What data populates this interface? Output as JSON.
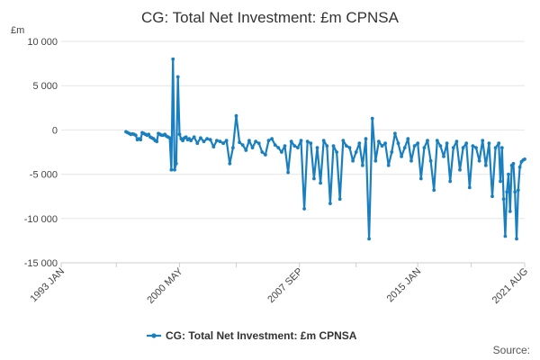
{
  "chart_data": {
    "type": "line",
    "title": "CG: Total Net Investment: £m CPNSA",
    "ylabel": "£m",
    "xlabel": "",
    "ylim": [
      -15000,
      10000
    ],
    "yticks": [
      10000,
      5000,
      0,
      -5000,
      -10000,
      -15000
    ],
    "ytick_labels": [
      "10 000",
      "5 000",
      "0",
      "-5 000",
      "-10 000",
      "-15 000"
    ],
    "xlim": [
      1993.0,
      2021.6
    ],
    "xticks": [
      1993.0,
      1996.4,
      2000.3,
      2003.8,
      2007.7,
      2011.2,
      2015.0,
      2018.3,
      2021.6
    ],
    "xtick_labels": [
      {
        "pos": 1993.0,
        "label": "1993 JAN"
      },
      {
        "pos": 2000.3,
        "label": "2000 MAY"
      },
      {
        "pos": 2007.7,
        "label": "2007 SEP"
      },
      {
        "pos": 2015.0,
        "label": "2015 JAN"
      },
      {
        "pos": 2021.6,
        "label": "2021 AUG"
      }
    ],
    "color": "#1a7fbf",
    "legend": {
      "label": "CG: Total Net Investment: £m CPNSA",
      "position": "bottom"
    },
    "series": [
      {
        "name": "CG: Total Net Investment: £m CPNSA",
        "x": [
          1997.0,
          1997.1,
          1997.2,
          1997.3,
          1997.4,
          1997.5,
          1997.6,
          1997.7,
          1997.8,
          1997.9,
          1998.0,
          1998.1,
          1998.2,
          1998.3,
          1998.4,
          1998.5,
          1998.6,
          1998.7,
          1998.8,
          1998.9,
          1999.0,
          1999.1,
          1999.2,
          1999.3,
          1999.4,
          1999.5,
          1999.6,
          1999.7,
          1999.8,
          1999.9,
          2000.0,
          2000.1,
          2000.2,
          2000.3,
          2000.4,
          2000.5,
          2000.6,
          2000.7,
          2000.8,
          2000.9,
          2001.0,
          2001.2,
          2001.4,
          2001.6,
          2001.8,
          2002.0,
          2002.2,
          2002.4,
          2002.6,
          2002.8,
          2003.0,
          2003.2,
          2003.4,
          2003.6,
          2003.8,
          2004.0,
          2004.2,
          2004.4,
          2004.6,
          2004.8,
          2005.0,
          2005.2,
          2005.4,
          2005.6,
          2005.8,
          2006.0,
          2006.2,
          2006.4,
          2006.6,
          2006.8,
          2007.0,
          2007.2,
          2007.4,
          2007.6,
          2007.8,
          2008.0,
          2008.2,
          2008.4,
          2008.6,
          2008.8,
          2009.0,
          2009.2,
          2009.4,
          2009.6,
          2009.8,
          2010.0,
          2010.2,
          2010.4,
          2010.6,
          2010.8,
          2011.0,
          2011.2,
          2011.4,
          2011.6,
          2011.8,
          2012.0,
          2012.2,
          2012.4,
          2012.6,
          2012.8,
          2013.0,
          2013.2,
          2013.4,
          2013.6,
          2013.8,
          2014.0,
          2014.2,
          2014.4,
          2014.6,
          2014.8,
          2015.0,
          2015.2,
          2015.4,
          2015.6,
          2015.8,
          2016.0,
          2016.2,
          2016.4,
          2016.6,
          2016.8,
          2017.0,
          2017.2,
          2017.4,
          2017.6,
          2017.8,
          2018.0,
          2018.2,
          2018.4,
          2018.6,
          2018.8,
          2019.0,
          2019.2,
          2019.4,
          2019.6,
          2019.8,
          2020.0,
          2020.1,
          2020.2,
          2020.3,
          2020.4,
          2020.5,
          2020.6,
          2020.7,
          2020.8,
          2020.9,
          2021.0,
          2021.1,
          2021.2,
          2021.3,
          2021.4,
          2021.5,
          2021.6
        ],
        "y": [
          -200,
          -300,
          -400,
          -500,
          -450,
          -500,
          -600,
          -1100,
          -1000,
          -1100,
          -300,
          -400,
          -500,
          -600,
          -500,
          -800,
          -900,
          -1000,
          -1200,
          -1300,
          -400,
          -500,
          -600,
          -600,
          -500,
          -700,
          -800,
          -900,
          -4500,
          8000,
          -4500,
          -3800,
          6000,
          -500,
          -1000,
          -1200,
          -900,
          -800,
          -1100,
          -1000,
          -1200,
          -800,
          -1500,
          -900,
          -1300,
          -1000,
          -1100,
          -1900,
          -1200,
          -1300,
          -1500,
          -1200,
          -3800,
          -2000,
          1600,
          -1400,
          -1700,
          -2300,
          -1200,
          -2000,
          -1300,
          -1500,
          -2500,
          -2800,
          -1200,
          -1000,
          -1700,
          -2000,
          -2500,
          -1800,
          -4800,
          -1300,
          -1800,
          -2000,
          -1200,
          -8900,
          -1300,
          -1500,
          -5500,
          -2000,
          -6000,
          -1200,
          -1800,
          -8300,
          -1800,
          -2500,
          -7800,
          -1200,
          -1800,
          -2000,
          -3500,
          -2500,
          -1500,
          -4000,
          -1000,
          -12300,
          1300,
          -3500,
          -1300,
          -1800,
          -1500,
          -4000,
          -2500,
          -400,
          -1500,
          -3000,
          -2000,
          -1000,
          -3500,
          -1800,
          -1500,
          -5500,
          -2000,
          -1200,
          -3500,
          -6800,
          -1200,
          -1800,
          -3000,
          -1500,
          -5800,
          -2000,
          -1300,
          -4500,
          -2000,
          -1500,
          -6500,
          -1800,
          -2000,
          -3500,
          -1200,
          -4000,
          -1500,
          -7500,
          -2000,
          -1500,
          -5800,
          -2000,
          -7800,
          -12000,
          -7000,
          -5000,
          -9200,
          -4000,
          -3800,
          -7000,
          -12300,
          -6800,
          -4200,
          -3600,
          -3400,
          -3300
        ]
      }
    ],
    "source": "Source:"
  }
}
